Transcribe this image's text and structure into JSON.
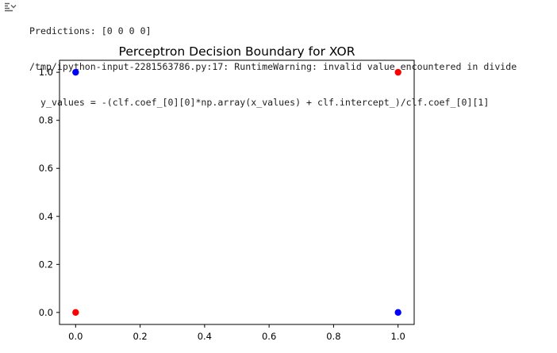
{
  "output": {
    "predictions_line": "Predictions: [0 0 0 0]",
    "warning_line": "/tmp/ipython-input-2281563786.py:17: RuntimeWarning: invalid value encountered in divide",
    "code_line": "y_values = -(clf.coef_[0][0]*np.array(x_values) + clf.intercept_)/clf.coef_[0][1]"
  },
  "chart_data": {
    "type": "scatter",
    "title": "Perceptron Decision Boundary for XOR",
    "xlabel": "",
    "ylabel": "",
    "xlim": [
      -0.05,
      1.05
    ],
    "ylim": [
      -0.05,
      1.05
    ],
    "xticks": [
      0.0,
      0.2,
      0.4,
      0.6,
      0.8,
      1.0
    ],
    "yticks": [
      0.0,
      0.2,
      0.4,
      0.6,
      0.8,
      1.0
    ],
    "xtick_labels": [
      "0.0",
      "0.2",
      "0.4",
      "0.6",
      "0.8",
      "1.0"
    ],
    "ytick_labels": [
      "0.0",
      "0.2",
      "0.4",
      "0.6",
      "0.8",
      "1.0"
    ],
    "grid": false,
    "points": [
      {
        "x": 0,
        "y": 0,
        "color": "#ff0000"
      },
      {
        "x": 0,
        "y": 1,
        "color": "#0000ff"
      },
      {
        "x": 1,
        "y": 0,
        "color": "#0000ff"
      },
      {
        "x": 1,
        "y": 1,
        "color": "#ff0000"
      }
    ]
  }
}
